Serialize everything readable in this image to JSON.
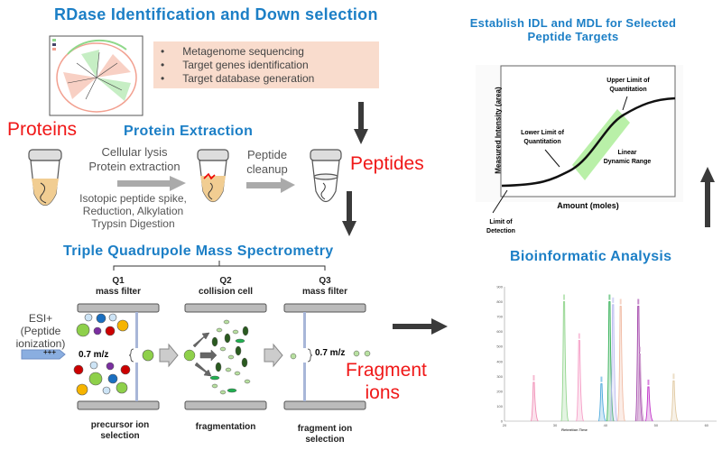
{
  "rdase": {
    "title": "RDase Identification and Down selection",
    "bullets": [
      "Metagenome sequencing",
      "Target genes identification",
      "Target database generation"
    ],
    "bullet_box_color": "#f9dccd"
  },
  "proteins_label": "Proteins",
  "extraction": {
    "title": "Protein Extraction",
    "step1": [
      "Cellular lysis",
      "Protein extraction"
    ],
    "step1_lower": [
      "Isotopic peptide spike,",
      "Reduction, Alkylation",
      "Trypsin Digestion"
    ],
    "step2": [
      "Peptide",
      "cleanup"
    ]
  },
  "peptides_label": "Peptides",
  "msms": {
    "title": "Triple Quadrupole Mass Spectrometry",
    "q1": {
      "name": "Q1",
      "role": "mass filter",
      "caption": [
        "precursor ion",
        "selection"
      ]
    },
    "q2": {
      "name": "Q2",
      "role": "collision cell",
      "caption": [
        "fragmentation"
      ]
    },
    "q3": {
      "name": "Q3",
      "role": "mass filter",
      "caption": [
        "fragment ion",
        "selection"
      ]
    },
    "esi": [
      "ESI+",
      "(Peptide",
      "ionization)"
    ],
    "esi_charge": "+++",
    "window1": "0.7 m/z",
    "window2": "0.7 m/z"
  },
  "fragment_label": [
    "Fragment",
    "ions"
  ],
  "idl": {
    "title": [
      "Establish IDL and MDL for Selected",
      "Peptide Targets"
    ],
    "ylabel": "Measured Intensity (area)",
    "xlabel": "Amount (moles)",
    "upper": [
      "Upper Limit of",
      "Quantitation"
    ],
    "lower": [
      "Lower Limit of",
      "Quantitation"
    ],
    "linear": [
      "Linear",
      "Dynamic Range"
    ],
    "lod": [
      "Limit of",
      "Detection"
    ],
    "range_color": "#b9f0a8"
  },
  "bioinformatic": {
    "title": "Bioinformatic Analysis"
  },
  "chart_data": {
    "type": "line",
    "xlabel": "Retention Time",
    "xlim": [
      20,
      62
    ],
    "ylim": [
      0,
      900
    ],
    "xticks": [
      20,
      30,
      40,
      50,
      60
    ],
    "yticks": [
      0,
      100,
      200,
      300,
      400,
      500,
      600,
      700,
      800,
      900
    ],
    "peaks": [
      {
        "time": 25.8,
        "intensity": 260,
        "color": "#f08cb4"
      },
      {
        "time": 31.8,
        "intensity": 800,
        "color": "#8fd48a"
      },
      {
        "time": 34.8,
        "intensity": 540,
        "color": "#f59ac4"
      },
      {
        "time": 39.2,
        "intensity": 250,
        "color": "#4aa8dc"
      },
      {
        "time": 40.8,
        "intensity": 800,
        "color": "#2fae52"
      },
      {
        "time": 41.5,
        "intensity": 780,
        "color": "#b8b8f0"
      },
      {
        "time": 43.0,
        "intensity": 770,
        "color": "#f0b8a0"
      },
      {
        "time": 46.5,
        "intensity": 770,
        "color": "#a040a8"
      },
      {
        "time": 46.8,
        "intensity": 450,
        "color": "#c890c8"
      },
      {
        "time": 48.5,
        "intensity": 230,
        "color": "#c030c8"
      },
      {
        "time": 53.5,
        "intensity": 270,
        "color": "#e0c8a0"
      }
    ]
  }
}
